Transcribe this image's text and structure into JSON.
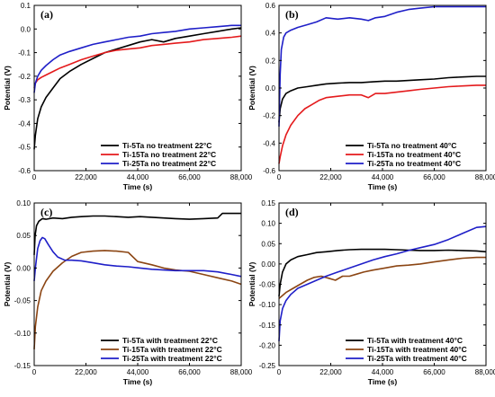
{
  "chart_data": [
    {
      "type": "line",
      "panel_label": "(a)",
      "xlabel": "Time (s)",
      "ylabel": "Potential (V)",
      "xlim": [
        0,
        88000
      ],
      "ylim": [
        -0.6,
        0.1
      ],
      "xticks": [
        0,
        22000,
        44000,
        66000,
        88000
      ],
      "xtick_labels": [
        "0",
        "22,000",
        "44,000",
        "66,000",
        "88,000"
      ],
      "yticks": [
        -0.6,
        -0.5,
        -0.4,
        -0.3,
        -0.2,
        -0.1,
        0.0,
        0.1
      ],
      "ytick_labels": [
        "-0.6",
        "-0.5",
        "-0.4",
        "-0.3",
        "-0.2",
        "-0.1",
        "0.0",
        "0.1"
      ],
      "legend_position": "bottom-right",
      "series": [
        {
          "name": "Ti-5Ta no treatment 22°C",
          "color": "#000000",
          "x": [
            0,
            500,
            1500,
            3000,
            5000,
            8000,
            11000,
            15000,
            20000,
            25000,
            30000,
            35000,
            40000,
            45000,
            50000,
            55000,
            60000,
            66000,
            72000,
            78000,
            84000,
            88000
          ],
          "y": [
            -0.51,
            -0.45,
            -0.38,
            -0.33,
            -0.29,
            -0.25,
            -0.21,
            -0.18,
            -0.15,
            -0.125,
            -0.1,
            -0.085,
            -0.07,
            -0.055,
            -0.045,
            -0.055,
            -0.04,
            -0.03,
            -0.02,
            -0.01,
            0.0,
            0.005
          ]
        },
        {
          "name": "Ti-15Ta no treatment 22°C",
          "color": "#e41a1c",
          "x": [
            0,
            500,
            1500,
            3000,
            5000,
            8000,
            11000,
            15000,
            20000,
            25000,
            30000,
            35000,
            40000,
            45000,
            50000,
            55000,
            60000,
            66000,
            72000,
            78000,
            84000,
            88000
          ],
          "y": [
            -0.25,
            -0.23,
            -0.215,
            -0.205,
            -0.195,
            -0.18,
            -0.165,
            -0.15,
            -0.13,
            -0.115,
            -0.1,
            -0.09,
            -0.085,
            -0.08,
            -0.07,
            -0.065,
            -0.06,
            -0.055,
            -0.045,
            -0.04,
            -0.035,
            -0.03
          ]
        },
        {
          "name": "Ti-25Ta no treatment 22°C",
          "color": "#1f1fc8",
          "x": [
            0,
            500,
            1500,
            3000,
            5000,
            8000,
            11000,
            15000,
            20000,
            25000,
            30000,
            35000,
            40000,
            45000,
            50000,
            55000,
            60000,
            66000,
            72000,
            78000,
            84000,
            88000
          ],
          "y": [
            -0.27,
            -0.23,
            -0.2,
            -0.175,
            -0.155,
            -0.13,
            -0.11,
            -0.095,
            -0.08,
            -0.065,
            -0.055,
            -0.045,
            -0.035,
            -0.03,
            -0.02,
            -0.015,
            -0.01,
            0.0,
            0.005,
            0.01,
            0.015,
            0.015
          ]
        }
      ]
    },
    {
      "type": "line",
      "panel_label": "(b)",
      "xlabel": "Time (s)",
      "ylabel": "Potential (V)",
      "xlim": [
        0,
        88000
      ],
      "ylim": [
        -0.6,
        0.6
      ],
      "xticks": [
        0,
        22000,
        44000,
        66000,
        88000
      ],
      "xtick_labels": [
        "0",
        "22,000",
        "44,000",
        "66,000",
        "88,000"
      ],
      "yticks": [
        -0.6,
        -0.4,
        -0.2,
        0.0,
        0.2,
        0.4,
        0.6
      ],
      "ytick_labels": [
        "-0.6",
        "-0.4",
        "-0.2",
        "0.0",
        "0.2",
        "0.4",
        "0.6"
      ],
      "legend_position": "bottom-right",
      "series": [
        {
          "name": "Ti-5Ta no treatment 40°C",
          "color": "#000000",
          "x": [
            0,
            500,
            1500,
            3000,
            5000,
            8000,
            12000,
            16000,
            20000,
            25000,
            30000,
            35000,
            40000,
            45000,
            50000,
            55000,
            60000,
            66000,
            72000,
            78000,
            84000,
            88000
          ],
          "y": [
            -0.25,
            -0.15,
            -0.08,
            -0.04,
            -0.02,
            0.0,
            0.01,
            0.02,
            0.03,
            0.035,
            0.04,
            0.04,
            0.045,
            0.05,
            0.05,
            0.055,
            0.06,
            0.065,
            0.075,
            0.08,
            0.085,
            0.085
          ]
        },
        {
          "name": "Ti-15Ta no treatment 40°C",
          "color": "#e41a1c",
          "x": [
            0,
            500,
            1500,
            3000,
            5000,
            8000,
            11000,
            14000,
            17000,
            20000,
            25000,
            30000,
            35000,
            38000,
            41000,
            45000,
            50000,
            55000,
            60000,
            66000,
            72000,
            78000,
            84000,
            88000
          ],
          "y": [
            -0.55,
            -0.5,
            -0.42,
            -0.34,
            -0.27,
            -0.2,
            -0.15,
            -0.12,
            -0.09,
            -0.07,
            -0.06,
            -0.05,
            -0.05,
            -0.07,
            -0.04,
            -0.04,
            -0.03,
            -0.02,
            -0.01,
            0.0,
            0.01,
            0.015,
            0.02,
            0.02
          ]
        },
        {
          "name": "Ti-25Ta no treatment 40°C",
          "color": "#1f1fc8",
          "x": [
            0,
            500,
            1000,
            2000,
            3000,
            5000,
            8000,
            12000,
            16000,
            20000,
            25000,
            30000,
            35000,
            38000,
            41000,
            45000,
            50000,
            55000,
            60000,
            66000,
            72000,
            78000,
            84000,
            88000
          ],
          "y": [
            -0.28,
            0.1,
            0.28,
            0.37,
            0.4,
            0.42,
            0.44,
            0.46,
            0.48,
            0.51,
            0.5,
            0.51,
            0.5,
            0.49,
            0.51,
            0.52,
            0.55,
            0.57,
            0.58,
            0.59,
            0.59,
            0.59,
            0.59,
            0.59
          ]
        }
      ]
    },
    {
      "type": "line",
      "panel_label": "(c)",
      "xlabel": "Time (s)",
      "ylabel": "Potential (V)",
      "xlim": [
        0,
        88000
      ],
      "ylim": [
        -0.15,
        0.1
      ],
      "xticks": [
        0,
        22000,
        44000,
        66000,
        88000
      ],
      "xtick_labels": [
        "0",
        "22,000",
        "44,000",
        "66,000",
        "88,000"
      ],
      "yticks": [
        -0.15,
        -0.1,
        -0.05,
        0.0,
        0.05,
        0.1
      ],
      "ytick_labels": [
        "-0.15",
        "-0.10",
        "-0.05",
        "0.00",
        "0.05",
        "0.10"
      ],
      "legend_position": "bottom-right",
      "series": [
        {
          "name": "Ti-5Ta with treatment 22°C",
          "color": "#000000",
          "x": [
            0,
            400,
            1000,
            2000,
            3500,
            5000,
            8000,
            12000,
            16000,
            20000,
            25000,
            30000,
            35000,
            40000,
            45000,
            50000,
            55000,
            60000,
            66000,
            72000,
            78000,
            80000,
            84000,
            88000
          ],
          "y": [
            0.02,
            0.05,
            0.065,
            0.072,
            0.076,
            0.075,
            0.077,
            0.076,
            0.078,
            0.079,
            0.08,
            0.08,
            0.079,
            0.078,
            0.079,
            0.078,
            0.077,
            0.076,
            0.075,
            0.076,
            0.077,
            0.084,
            0.084,
            0.084
          ]
        },
        {
          "name": "Ti-15Ta with treatment 22°C",
          "color": "#8b4513",
          "x": [
            0,
            500,
            1500,
            3000,
            5000,
            8000,
            12000,
            16000,
            20000,
            25000,
            30000,
            35000,
            40000,
            44000,
            50000,
            55000,
            60000,
            66000,
            72000,
            78000,
            84000,
            88000
          ],
          "y": [
            -0.125,
            -0.09,
            -0.06,
            -0.035,
            -0.02,
            -0.005,
            0.008,
            0.018,
            0.024,
            0.026,
            0.027,
            0.026,
            0.024,
            0.01,
            0.005,
            0.0,
            -0.003,
            -0.005,
            -0.01,
            -0.015,
            -0.02,
            -0.025
          ]
        },
        {
          "name": "Ti-25Ta with treatment 22°C",
          "color": "#1f1fc8",
          "x": [
            0,
            500,
            1500,
            2500,
            3500,
            4500,
            6000,
            8000,
            10000,
            13000,
            16000,
            20000,
            25000,
            30000,
            35000,
            40000,
            45000,
            50000,
            55000,
            60000,
            66000,
            72000,
            78000,
            84000,
            88000
          ],
          "y": [
            -0.02,
            0.0,
            0.03,
            0.042,
            0.047,
            0.045,
            0.036,
            0.025,
            0.017,
            0.012,
            0.012,
            0.011,
            0.008,
            0.005,
            0.003,
            0.002,
            0.0,
            -0.002,
            -0.003,
            -0.004,
            -0.004,
            -0.004,
            -0.006,
            -0.01,
            -0.013
          ]
        }
      ]
    },
    {
      "type": "line",
      "panel_label": "(d)",
      "xlabel": "Time (s)",
      "ylabel": "Potential (V)",
      "xlim": [
        0,
        88000
      ],
      "ylim": [
        -0.25,
        0.15
      ],
      "xticks": [
        0,
        22000,
        44000,
        66000,
        88000
      ],
      "xtick_labels": [
        "0",
        "22,000",
        "44,000",
        "66,000",
        "88,000"
      ],
      "yticks": [
        -0.25,
        -0.2,
        -0.15,
        -0.1,
        -0.05,
        0.0,
        0.05,
        0.1,
        0.15
      ],
      "ytick_labels": [
        "-0.25",
        "-0.20",
        "-0.15",
        "-0.10",
        "-0.05",
        "0.00",
        "0.05",
        "0.10",
        "0.15"
      ],
      "legend_position": "bottom-right",
      "series": [
        {
          "name": "Ti-5Ta with treatment 40°C",
          "color": "#000000",
          "x": [
            0,
            500,
            1500,
            3000,
            5000,
            8000,
            12000,
            16000,
            20000,
            25000,
            30000,
            35000,
            40000,
            45000,
            50000,
            55000,
            60000,
            66000,
            72000,
            78000,
            84000,
            88000
          ],
          "y": [
            -0.08,
            -0.05,
            -0.02,
            0.0,
            0.01,
            0.018,
            0.023,
            0.028,
            0.03,
            0.033,
            0.035,
            0.036,
            0.036,
            0.036,
            0.035,
            0.034,
            0.033,
            0.033,
            0.034,
            0.033,
            0.032,
            0.03
          ]
        },
        {
          "name": "Ti-15Ta with treatment 40°C",
          "color": "#8b4513",
          "x": [
            0,
            1000,
            3000,
            6000,
            9000,
            12000,
            15000,
            18000,
            21000,
            24000,
            27000,
            30000,
            33000,
            36000,
            40000,
            45000,
            50000,
            55000,
            60000,
            66000,
            72000,
            78000,
            84000,
            88000
          ],
          "y": [
            -0.085,
            -0.08,
            -0.07,
            -0.06,
            -0.05,
            -0.04,
            -0.033,
            -0.03,
            -0.035,
            -0.04,
            -0.03,
            -0.03,
            -0.025,
            -0.02,
            -0.015,
            -0.01,
            -0.005,
            -0.003,
            0.0,
            0.005,
            0.01,
            0.014,
            0.016,
            0.016
          ]
        },
        {
          "name": "Ti-25Ta with treatment 40°C",
          "color": "#1f1fc8",
          "x": [
            0,
            500,
            1500,
            3000,
            5000,
            8000,
            12000,
            16000,
            20000,
            25000,
            30000,
            35000,
            40000,
            45000,
            50000,
            55000,
            60000,
            66000,
            72000,
            78000,
            84000,
            88000
          ],
          "y": [
            -0.19,
            -0.14,
            -0.11,
            -0.09,
            -0.075,
            -0.06,
            -0.05,
            -0.04,
            -0.03,
            -0.02,
            -0.01,
            0.0,
            0.01,
            0.018,
            0.025,
            0.033,
            0.04,
            0.048,
            0.06,
            0.075,
            0.09,
            0.092
          ]
        }
      ]
    }
  ]
}
